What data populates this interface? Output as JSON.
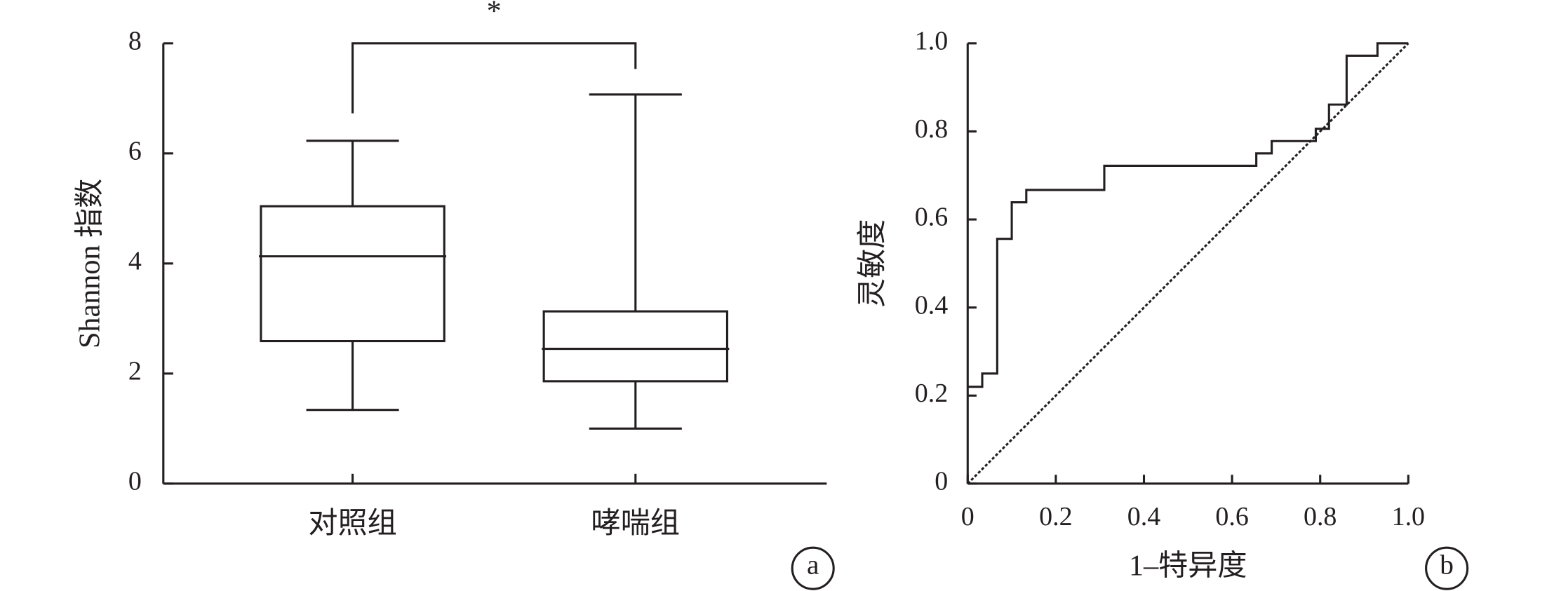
{
  "chart_data": [
    {
      "type": "box",
      "annotation": "*",
      "panel_label": "a",
      "y_label": "Shannon 指数",
      "categories": [
        "对照组",
        "哮喘组"
      ],
      "boxes": [
        {
          "min": 1.34,
          "q1": 2.59,
          "median": 4.13,
          "q3": 5.04,
          "max": 6.23
        },
        {
          "min": 1.0,
          "q1": 1.86,
          "median": 2.45,
          "q3": 3.13,
          "max": 7.07
        }
      ],
      "color": "#231f20",
      "ylim": [
        0,
        8
      ],
      "yticks": [
        0,
        2,
        4,
        6,
        8
      ]
    },
    {
      "type": "line",
      "panel_label": "b",
      "x_label": "1–特异度",
      "y_label": "灵敏度",
      "x": [
        0,
        0.033,
        0.033,
        0.067,
        0.067,
        0.1,
        0.1,
        0.133,
        0.133,
        0.31,
        0.31,
        0.655,
        0.655,
        0.69,
        0.69,
        0.79,
        0.79,
        0.82,
        0.82,
        0.86,
        0.86,
        0.93,
        0.93,
        1.0
      ],
      "series": [
        {
          "color": "#231f20",
          "values": [
            0.22,
            0.22,
            0.25,
            0.25,
            0.556,
            0.556,
            0.639,
            0.639,
            0.667,
            0.667,
            0.722,
            0.722,
            0.75,
            0.75,
            0.778,
            0.778,
            0.806,
            0.806,
            0.861,
            0.861,
            0.972,
            0.972,
            1.0,
            1.0
          ]
        }
      ],
      "reference_line": true,
      "xlim": [
        0,
        1
      ],
      "ylim": [
        0,
        1
      ],
      "xticks": [
        0,
        0.2,
        0.4,
        0.6,
        0.8,
        {
          "value": 1,
          "label": "1.0"
        }
      ],
      "yticks": [
        0,
        0.2,
        0.4,
        0.6,
        0.8,
        {
          "value": 1,
          "label": "1.0"
        }
      ]
    }
  ]
}
